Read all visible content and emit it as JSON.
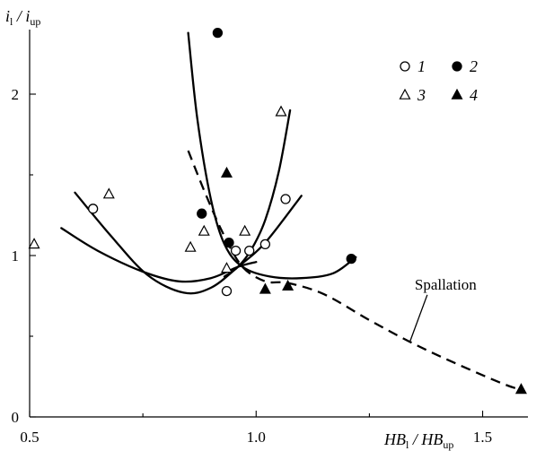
{
  "chart_data": {
    "type": "scatter",
    "title": "",
    "xlabel": "HB_l / HB_up",
    "ylabel": "i_l / i_up",
    "xlabel_parts": {
      "num": "HB",
      "num_sub": "l",
      "sep": " / ",
      "den": "HB",
      "den_sub": "up"
    },
    "ylabel_parts": {
      "num": "i",
      "num_sub": "l",
      "sep": " / ",
      "den": "i",
      "den_sub": "up"
    },
    "xlim": [
      0.5,
      1.6
    ],
    "ylim": [
      0,
      2.4
    ],
    "xticks": [
      0.5,
      1.0,
      1.5
    ],
    "xtick_labels": [
      "0.5",
      "1.0",
      "1.5"
    ],
    "yticks": [
      0,
      1,
      2
    ],
    "ytick_labels": [
      "0",
      "1",
      "2"
    ],
    "grid": false,
    "legend": "top-right",
    "series": [
      {
        "name": "1",
        "marker": "circle-open",
        "points": [
          [
            0.64,
            1.29
          ],
          [
            0.935,
            0.78
          ],
          [
            0.955,
            1.03
          ],
          [
            0.985,
            1.03
          ],
          [
            1.02,
            1.07
          ],
          [
            1.065,
            1.35
          ]
        ]
      },
      {
        "name": "2",
        "marker": "circle-filled",
        "points": [
          [
            0.915,
            2.38
          ],
          [
            0.88,
            1.26
          ],
          [
            0.94,
            1.08
          ],
          [
            1.21,
            0.98
          ]
        ]
      },
      {
        "name": "3",
        "marker": "triangle-open",
        "points": [
          [
            0.51,
            1.07
          ],
          [
            0.675,
            1.38
          ],
          [
            0.855,
            1.05
          ],
          [
            0.885,
            1.15
          ],
          [
            0.935,
            0.92
          ],
          [
            0.975,
            1.15
          ],
          [
            1.055,
            1.89
          ]
        ]
      },
      {
        "name": "4",
        "marker": "triangle-filled",
        "points": [
          [
            0.935,
            1.51
          ],
          [
            1.02,
            0.79
          ],
          [
            1.07,
            0.81
          ],
          [
            1.585,
            0.17
          ]
        ]
      }
    ],
    "curves": [
      {
        "style": "solid",
        "points": [
          [
            0.57,
            1.17
          ],
          [
            0.65,
            1.03
          ],
          [
            0.75,
            0.9
          ],
          [
            0.83,
            0.84
          ],
          [
            0.9,
            0.86
          ],
          [
            0.96,
            0.93
          ],
          [
            1.0,
            0.96
          ]
        ]
      },
      {
        "style": "solid",
        "points": [
          [
            0.6,
            1.39
          ],
          [
            0.68,
            1.12
          ],
          [
            0.76,
            0.88
          ],
          [
            0.84,
            0.77
          ],
          [
            0.9,
            0.8
          ],
          [
            0.96,
            0.93
          ],
          [
            1.02,
            1.08
          ],
          [
            1.1,
            1.37
          ]
        ]
      },
      {
        "style": "solid",
        "points": [
          [
            0.85,
            2.38
          ],
          [
            0.87,
            1.85
          ],
          [
            0.9,
            1.35
          ],
          [
            0.93,
            1.07
          ],
          [
            0.97,
            0.93
          ],
          [
            1.03,
            0.87
          ],
          [
            1.1,
            0.86
          ],
          [
            1.17,
            0.89
          ],
          [
            1.22,
            0.99
          ]
        ]
      },
      {
        "style": "solid",
        "points": [
          [
            0.93,
            0.87
          ],
          [
            0.96,
            0.93
          ],
          [
            0.99,
            1.04
          ],
          [
            1.02,
            1.22
          ],
          [
            1.05,
            1.52
          ],
          [
            1.075,
            1.9
          ]
        ]
      },
      {
        "style": "dashed",
        "points": [
          [
            0.85,
            1.65
          ],
          [
            0.89,
            1.37
          ],
          [
            0.93,
            1.12
          ],
          [
            0.97,
            0.93
          ],
          [
            1.02,
            0.84
          ],
          [
            1.07,
            0.83
          ],
          [
            1.15,
            0.76
          ],
          [
            1.25,
            0.6
          ],
          [
            1.35,
            0.45
          ],
          [
            1.45,
            0.32
          ],
          [
            1.55,
            0.2
          ],
          [
            1.585,
            0.17
          ]
        ]
      }
    ],
    "annotations": [
      {
        "text": "Spallation",
        "x": 1.35,
        "y": 0.79,
        "pointer_to": [
          1.34,
          0.47
        ]
      }
    ]
  }
}
